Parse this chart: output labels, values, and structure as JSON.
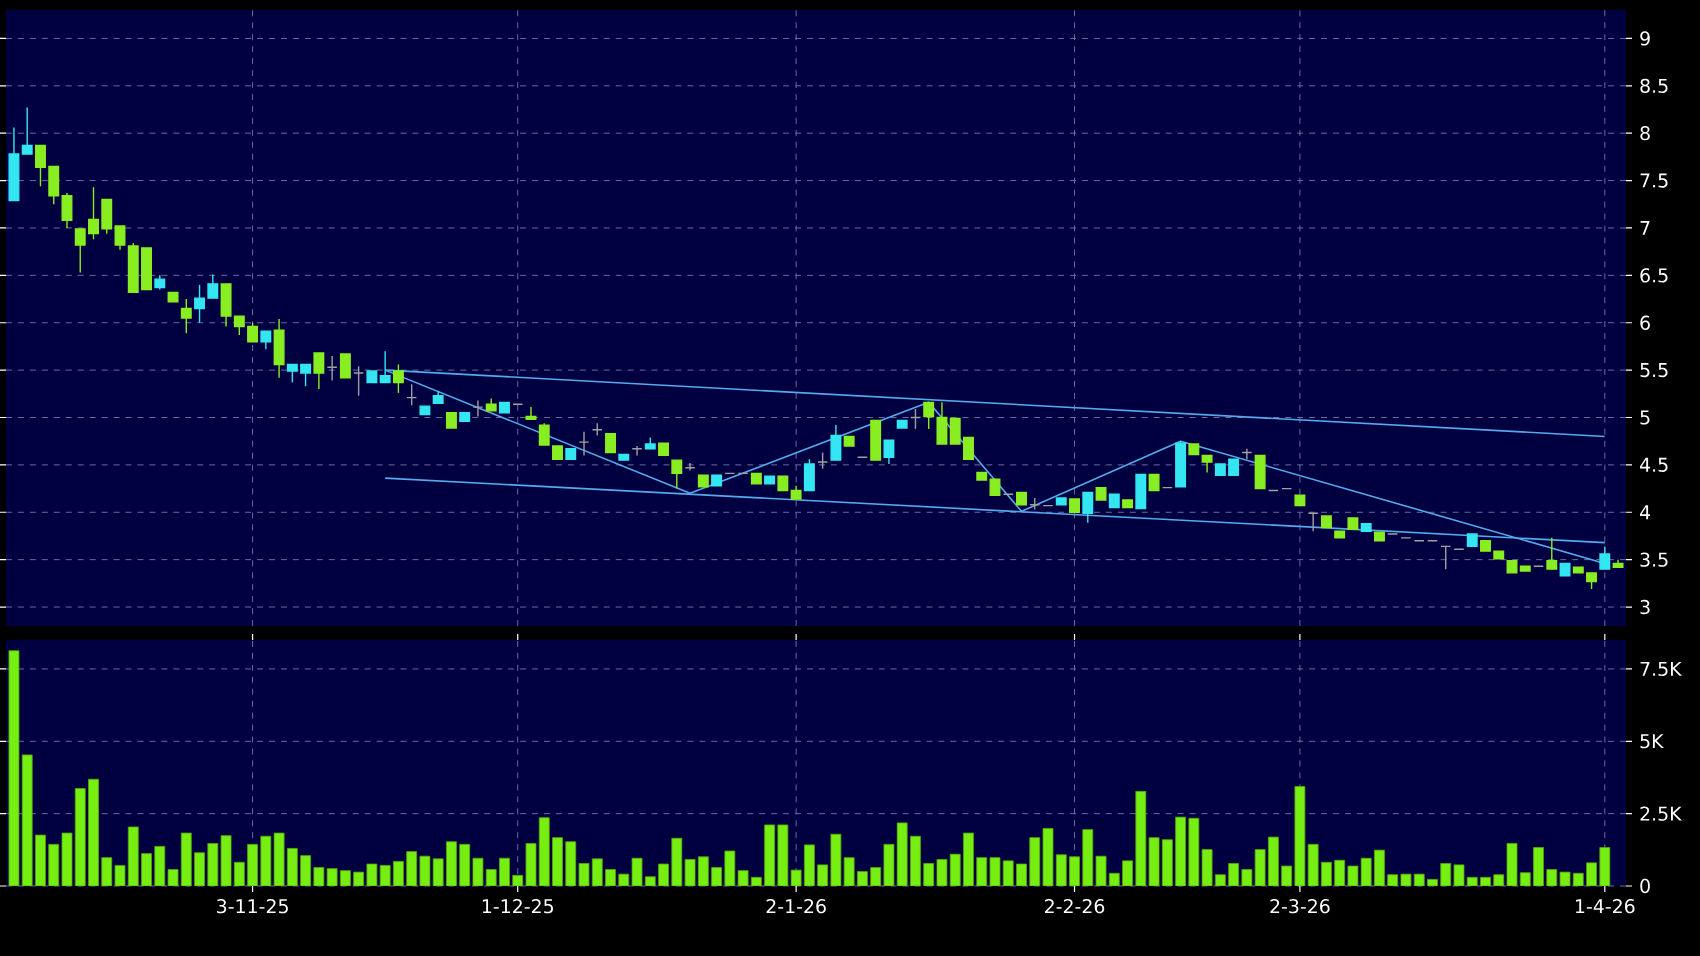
{
  "chart_data": [
    {
      "type": "candlestick",
      "categories": [
        null,
        null,
        null,
        null,
        null,
        null,
        null,
        null,
        null,
        null,
        null,
        null,
        null,
        null,
        null,
        null,
        null,
        null,
        null,
        null,
        null,
        null,
        null,
        null,
        null,
        null,
        null,
        null,
        null,
        null,
        null,
        null,
        null,
        null,
        null,
        null,
        null,
        null,
        null,
        null,
        null,
        null,
        null,
        null,
        null,
        null,
        null,
        null,
        null,
        null,
        null,
        null,
        null,
        null,
        null,
        null,
        null,
        null,
        null,
        null,
        null,
        null,
        null,
        null,
        null,
        null,
        null,
        null,
        null,
        null,
        null,
        null,
        null,
        null,
        null,
        null,
        null,
        null,
        null,
        null,
        null,
        null,
        null,
        null,
        null,
        null,
        null,
        null,
        null,
        null,
        null,
        null,
        null,
        null,
        null,
        null,
        null,
        null,
        null,
        null,
        null,
        null,
        null,
        null,
        null,
        null,
        null,
        null,
        null,
        null,
        null,
        null,
        null,
        null,
        null,
        null,
        null,
        null,
        null,
        null,
        null,
        null
      ],
      "ohlc": [
        [
          7.29,
          8.06,
          7.29,
          7.78
        ],
        [
          7.78,
          8.27,
          7.78,
          7.87
        ],
        [
          7.87,
          7.87,
          7.44,
          7.64
        ],
        [
          7.65,
          7.65,
          7.25,
          7.34
        ],
        [
          7.34,
          7.37,
          7.0,
          7.08
        ],
        [
          6.99,
          6.99,
          6.53,
          6.82
        ],
        [
          7.09,
          7.43,
          6.88,
          6.94
        ],
        [
          7.3,
          7.3,
          6.94,
          6.99
        ],
        [
          7.02,
          7.02,
          6.77,
          6.82
        ],
        [
          6.81,
          6.84,
          6.32,
          6.32
        ],
        [
          6.79,
          6.79,
          6.35,
          6.35
        ],
        [
          6.37,
          6.5,
          6.35,
          6.46
        ],
        [
          6.32,
          6.32,
          6.22,
          6.22
        ],
        [
          6.15,
          6.25,
          5.89,
          6.05
        ],
        [
          6.15,
          6.4,
          6.0,
          6.26
        ],
        [
          6.26,
          6.51,
          6.26,
          6.41
        ],
        [
          6.41,
          6.41,
          5.96,
          6.07
        ],
        [
          6.07,
          6.07,
          5.87,
          5.96
        ],
        [
          5.96,
          6.0,
          5.8,
          5.8
        ],
        [
          5.8,
          5.91,
          5.72,
          5.91
        ],
        [
          5.92,
          6.04,
          5.42,
          5.56
        ],
        [
          5.49,
          5.56,
          5.37,
          5.56
        ],
        [
          5.47,
          5.56,
          5.33,
          5.56
        ],
        [
          5.68,
          5.68,
          5.3,
          5.47
        ],
        [
          5.53,
          5.65,
          5.39,
          5.53
        ],
        [
          5.67,
          5.67,
          5.42,
          5.42
        ],
        [
          5.47,
          5.54,
          5.23,
          5.47
        ],
        [
          5.37,
          5.49,
          5.37,
          5.49
        ],
        [
          5.37,
          5.7,
          5.37,
          5.44
        ],
        [
          5.49,
          5.56,
          5.26,
          5.37
        ],
        [
          5.21,
          5.35,
          5.13,
          5.21
        ],
        [
          5.03,
          5.12,
          5.03,
          5.12
        ],
        [
          5.15,
          5.28,
          5.15,
          5.23
        ],
        [
          5.05,
          5.05,
          4.89,
          4.89
        ],
        [
          4.96,
          5.05,
          4.96,
          5.05
        ],
        [
          5.11,
          5.18,
          5.01,
          5.11
        ],
        [
          5.14,
          5.2,
          5.07,
          5.07
        ],
        [
          5.05,
          5.16,
          5.05,
          5.16
        ],
        [
          5.14,
          5.14,
          5.14,
          5.14
        ],
        [
          5.01,
          5.11,
          4.98,
          4.98
        ],
        [
          4.92,
          4.94,
          4.71,
          4.71
        ],
        [
          4.7,
          4.7,
          4.56,
          4.56
        ],
        [
          4.56,
          4.67,
          4.56,
          4.67
        ],
        [
          4.74,
          4.85,
          4.6,
          4.74
        ],
        [
          4.87,
          4.94,
          4.81,
          4.87
        ],
        [
          4.83,
          4.83,
          4.63,
          4.63
        ],
        [
          4.55,
          4.61,
          4.55,
          4.61
        ],
        [
          4.67,
          4.7,
          4.6,
          4.67
        ],
        [
          4.67,
          4.79,
          4.67,
          4.72
        ],
        [
          4.73,
          4.73,
          4.6,
          4.6
        ],
        [
          4.55,
          4.55,
          4.25,
          4.41
        ],
        [
          4.47,
          4.52,
          4.44,
          4.47
        ],
        [
          4.39,
          4.39,
          4.27,
          4.27
        ],
        [
          4.28,
          4.39,
          4.28,
          4.39
        ],
        [
          4.41,
          4.41,
          4.41,
          4.41
        ],
        [
          4.41,
          4.41,
          4.41,
          4.41
        ],
        [
          4.41,
          4.41,
          4.3,
          4.3
        ],
        [
          4.3,
          4.38,
          4.3,
          4.38
        ],
        [
          4.38,
          4.38,
          4.23,
          4.23
        ],
        [
          4.23,
          4.28,
          4.14,
          4.14
        ],
        [
          4.23,
          4.56,
          4.23,
          4.51
        ],
        [
          4.53,
          4.63,
          4.46,
          4.53
        ],
        [
          4.55,
          4.92,
          4.55,
          4.81
        ],
        [
          4.8,
          4.8,
          4.7,
          4.7
        ],
        [
          4.58,
          4.58,
          4.58,
          4.58
        ],
        [
          4.97,
          4.97,
          4.55,
          4.55
        ],
        [
          4.58,
          4.76,
          4.51,
          4.76
        ],
        [
          4.89,
          4.97,
          4.89,
          4.97
        ],
        [
          5.0,
          5.09,
          4.88,
          5.0
        ],
        [
          5.16,
          5.16,
          4.88,
          5.01
        ],
        [
          5.0,
          5.16,
          4.72,
          4.72
        ],
        [
          4.99,
          4.99,
          4.72,
          4.72
        ],
        [
          4.79,
          4.79,
          4.56,
          4.56
        ],
        [
          4.42,
          4.42,
          4.34,
          4.34
        ],
        [
          4.35,
          4.35,
          4.18,
          4.18
        ],
        [
          4.19,
          4.19,
          4.19,
          4.19
        ],
        [
          4.21,
          4.21,
          4.08,
          4.08
        ],
        [
          4.08,
          4.15,
          4.03,
          4.08
        ],
        [
          4.07,
          4.07,
          4.07,
          4.07
        ],
        [
          4.08,
          4.15,
          4.08,
          4.15
        ],
        [
          4.14,
          4.14,
          4.0,
          4.0
        ],
        [
          3.99,
          4.21,
          3.89,
          4.21
        ],
        [
          4.26,
          4.26,
          4.13,
          4.13
        ],
        [
          4.05,
          4.19,
          4.05,
          4.19
        ],
        [
          4.13,
          4.13,
          4.05,
          4.05
        ],
        [
          4.04,
          4.4,
          4.04,
          4.4
        ],
        [
          4.4,
          4.4,
          4.23,
          4.23
        ],
        [
          4.26,
          4.26,
          4.26,
          4.26
        ],
        [
          4.27,
          4.75,
          4.27,
          4.73
        ],
        [
          4.72,
          4.72,
          4.61,
          4.61
        ],
        [
          4.6,
          4.6,
          4.42,
          4.53
        ],
        [
          4.39,
          4.51,
          4.39,
          4.51
        ],
        [
          4.39,
          4.56,
          4.39,
          4.56
        ],
        [
          4.63,
          4.67,
          4.56,
          4.63
        ],
        [
          4.6,
          4.6,
          4.25,
          4.25
        ],
        [
          4.23,
          4.23,
          4.23,
          4.23
        ],
        [
          4.25,
          4.25,
          4.25,
          4.25
        ],
        [
          4.18,
          4.18,
          4.07,
          4.07
        ],
        [
          3.99,
          3.99,
          3.8,
          3.99
        ],
        [
          3.96,
          3.96,
          3.84,
          3.84
        ],
        [
          3.8,
          3.8,
          3.73,
          3.73
        ],
        [
          3.94,
          3.94,
          3.82,
          3.82
        ],
        [
          3.8,
          3.88,
          3.8,
          3.88
        ],
        [
          3.79,
          3.79,
          3.7,
          3.7
        ],
        [
          3.77,
          3.77,
          3.77,
          3.77
        ],
        [
          3.73,
          3.73,
          3.73,
          3.73
        ],
        [
          3.7,
          3.7,
          3.7,
          3.7
        ],
        [
          3.7,
          3.7,
          3.7,
          3.7
        ],
        [
          3.64,
          3.64,
          3.4,
          3.64
        ],
        [
          3.61,
          3.61,
          3.61,
          3.61
        ],
        [
          3.64,
          3.77,
          3.64,
          3.77
        ],
        [
          3.7,
          3.7,
          3.59,
          3.59
        ],
        [
          3.59,
          3.59,
          3.51,
          3.51
        ],
        [
          3.49,
          3.49,
          3.36,
          3.36
        ],
        [
          3.43,
          3.43,
          3.38,
          3.38
        ],
        [
          3.43,
          3.43,
          3.43,
          3.43
        ],
        [
          3.49,
          3.73,
          3.4,
          3.4
        ],
        [
          3.33,
          3.46,
          3.33,
          3.46
        ],
        [
          3.42,
          3.42,
          3.36,
          3.36
        ],
        [
          3.36,
          3.36,
          3.19,
          3.27
        ],
        [
          3.4,
          3.64,
          3.4,
          3.56
        ],
        [
          3.46,
          3.5,
          3.42,
          3.42
        ]
      ],
      "colors": [
        "#33e6f2",
        "#33e6f2",
        "#88ee22",
        "#88ee22",
        "#88ee22",
        "#88ee22",
        "#88ee22",
        "#88ee22",
        "#88ee22",
        "#88ee22",
        "#88ee22",
        "#33e6f2",
        "#88ee22",
        "#88ee22",
        "#33e6f2",
        "#33e6f2",
        "#88ee22",
        "#88ee22",
        "#88ee22",
        "#33e6f2",
        "#88ee22",
        "#33e6f2",
        "#33e6f2",
        "#88ee22",
        "#a0a0a0",
        "#88ee22",
        "#a0a0a0",
        "#33e6f2",
        "#33e6f2",
        "#88ee22",
        "#a0a0a0",
        "#33e6f2",
        "#33e6f2",
        "#88ee22",
        "#33e6f2",
        "#a0a0a0",
        "#88ee22",
        "#33e6f2",
        "#a0a0a0",
        "#88ee22",
        "#88ee22",
        "#88ee22",
        "#33e6f2",
        "#a0a0a0",
        "#a0a0a0",
        "#88ee22",
        "#33e6f2",
        "#a0a0a0",
        "#33e6f2",
        "#88ee22",
        "#88ee22",
        "#a0a0a0",
        "#88ee22",
        "#33e6f2",
        "#a0a0a0",
        "#a0a0a0",
        "#88ee22",
        "#33e6f2",
        "#88ee22",
        "#88ee22",
        "#33e6f2",
        "#a0a0a0",
        "#33e6f2",
        "#88ee22",
        "#a0a0a0",
        "#88ee22",
        "#33e6f2",
        "#33e6f2",
        "#a0a0a0",
        "#88ee22",
        "#88ee22",
        "#88ee22",
        "#88ee22",
        "#88ee22",
        "#88ee22",
        "#a0a0a0",
        "#88ee22",
        "#a0a0a0",
        "#a0a0a0",
        "#33e6f2",
        "#88ee22",
        "#33e6f2",
        "#88ee22",
        "#33e6f2",
        "#88ee22",
        "#33e6f2",
        "#88ee22",
        "#a0a0a0",
        "#33e6f2",
        "#88ee22",
        "#88ee22",
        "#33e6f2",
        "#33e6f2",
        "#a0a0a0",
        "#88ee22",
        "#a0a0a0",
        "#a0a0a0",
        "#88ee22",
        "#a0a0a0",
        "#88ee22",
        "#88ee22",
        "#88ee22",
        "#33e6f2",
        "#88ee22",
        "#a0a0a0",
        "#a0a0a0",
        "#a0a0a0",
        "#a0a0a0",
        "#a0a0a0",
        "#a0a0a0",
        "#33e6f2",
        "#88ee22",
        "#88ee22",
        "#88ee22",
        "#88ee22",
        "#a0a0a0",
        "#88ee22",
        "#33e6f2",
        "#88ee22",
        "#88ee22",
        "#33e6f2",
        "#88ee22"
      ],
      "series": [
        {
          "type": "line",
          "color": "#55aaee",
          "values": [
            null,
            null,
            null,
            null,
            null,
            null,
            null,
            null,
            null,
            null,
            null,
            null,
            null,
            null,
            null,
            null,
            null,
            null,
            null,
            null,
            null,
            null,
            null,
            null,
            null,
            null,
            null,
            null,
            5.5,
            null,
            null,
            null,
            null,
            null,
            null,
            null,
            null,
            null,
            null,
            null,
            null,
            null,
            null,
            null,
            null,
            null,
            null,
            null,
            null,
            null,
            null,
            null,
            null,
            null,
            null,
            null,
            null,
            null,
            null,
            null,
            null,
            null,
            null,
            null,
            null,
            null,
            null,
            null,
            null,
            null,
            null,
            null,
            null,
            null,
            null,
            null,
            null,
            null,
            null,
            null,
            null,
            null,
            null,
            null,
            null,
            null,
            null,
            null,
            null,
            null,
            null,
            null,
            null,
            null,
            null,
            null,
            null,
            null,
            null,
            null,
            null,
            null,
            null,
            null,
            null,
            null,
            null,
            null,
            null,
            null,
            null,
            null,
            null,
            null,
            null,
            null,
            null,
            null,
            null,
            null,
            4.8,
            null
          ]
        },
        {
          "type": "line",
          "color": "#55aaee",
          "values": [
            null,
            null,
            null,
            null,
            null,
            null,
            null,
            null,
            null,
            null,
            null,
            null,
            null,
            null,
            null,
            null,
            null,
            null,
            null,
            null,
            null,
            null,
            null,
            null,
            null,
            null,
            null,
            null,
            4.36,
            null,
            null,
            null,
            null,
            null,
            null,
            null,
            null,
            null,
            null,
            null,
            null,
            null,
            null,
            null,
            null,
            null,
            null,
            null,
            null,
            null,
            null,
            null,
            null,
            null,
            null,
            null,
            null,
            null,
            null,
            null,
            null,
            null,
            null,
            null,
            null,
            null,
            null,
            null,
            null,
            null,
            null,
            null,
            null,
            null,
            null,
            null,
            null,
            null,
            null,
            null,
            null,
            null,
            null,
            null,
            null,
            null,
            null,
            null,
            null,
            null,
            null,
            null,
            null,
            null,
            null,
            null,
            null,
            null,
            null,
            null,
            null,
            null,
            null,
            null,
            null,
            null,
            null,
            null,
            null,
            null,
            null,
            null,
            null,
            null,
            null,
            null,
            null,
            null,
            null,
            null,
            3.68,
            null
          ]
        },
        {
          "type": "line",
          "color": "#55aaee",
          "values": [
            null,
            null,
            null,
            null,
            null,
            null,
            null,
            null,
            null,
            null,
            null,
            null,
            null,
            null,
            null,
            null,
            null,
            null,
            null,
            null,
            null,
            null,
            null,
            null,
            null,
            null,
            null,
            null,
            5.5,
            null,
            null,
            null,
            null,
            null,
            null,
            null,
            null,
            null,
            null,
            null,
            null,
            null,
            null,
            null,
            null,
            null,
            null,
            null,
            null,
            null,
            null,
            4.2,
            null,
            null,
            null,
            null,
            null,
            null,
            null,
            null,
            null,
            null,
            null,
            null,
            null,
            null,
            null,
            null,
            null,
            5.16,
            null,
            null,
            null,
            null,
            null,
            null,
            4.01,
            null,
            null,
            null,
            null,
            null,
            null,
            null,
            null,
            null,
            null,
            null,
            4.75,
            null,
            null,
            null,
            null,
            null,
            null,
            null,
            null,
            null,
            null,
            null,
            null,
            null,
            null,
            null,
            null,
            null,
            null,
            null,
            null,
            null,
            null,
            null,
            null,
            null,
            null,
            null,
            null,
            null,
            null,
            null,
            3.46,
            null
          ]
        }
      ],
      "ylim": [
        2.8,
        9.3
      ],
      "yticks": [
        3,
        3.5,
        4,
        4.5,
        5,
        5.5,
        6,
        6.5,
        7,
        7.5,
        8,
        8.5,
        9
      ],
      "grid": true
    },
    {
      "type": "bar",
      "categories": [
        null,
        null,
        null,
        null,
        null,
        null,
        null,
        null,
        null,
        null,
        null,
        null,
        null,
        null,
        null,
        null,
        null,
        null,
        "3-11-25",
        null,
        null,
        null,
        null,
        null,
        null,
        null,
        null,
        null,
        null,
        null,
        null,
        null,
        null,
        null,
        null,
        null,
        null,
        null,
        "1-12-25",
        null,
        null,
        null,
        null,
        null,
        null,
        null,
        null,
        null,
        null,
        null,
        null,
        null,
        null,
        null,
        null,
        null,
        null,
        null,
        null,
        "2-1-26",
        null,
        null,
        null,
        null,
        null,
        null,
        null,
        null,
        null,
        null,
        null,
        null,
        null,
        null,
        null,
        null,
        null,
        null,
        null,
        null,
        "2-2-26",
        null,
        null,
        null,
        null,
        null,
        null,
        null,
        null,
        null,
        null,
        null,
        null,
        null,
        null,
        null,
        null,
        "2-3-26",
        null,
        null,
        null,
        null,
        null,
        null,
        null,
        null,
        null,
        null,
        null,
        null,
        null,
        null,
        null,
        null,
        null,
        null,
        null,
        null,
        null,
        null,
        "1-4-26",
        null
      ],
      "values": [
        8130,
        4530,
        1760,
        1440,
        1830,
        3370,
        3690,
        980,
        710,
        2040,
        1120,
        1370,
        570,
        1830,
        1150,
        1470,
        1740,
        820,
        1440,
        1720,
        1830,
        1300,
        1050,
        640,
        600,
        530,
        480,
        760,
        710,
        850,
        1190,
        1030,
        940,
        1530,
        1440,
        960,
        570,
        960,
        370,
        1470,
        2360,
        1670,
        1530,
        780,
        940,
        570,
        410,
        960,
        320,
        760,
        1650,
        920,
        1010,
        640,
        1210,
        530,
        300,
        2110,
        2110,
        550,
        1420,
        730,
        1790,
        980,
        500,
        640,
        1440,
        2180,
        1720,
        780,
        920,
        1100,
        1830,
        980,
        980,
        870,
        760,
        1670,
        1990,
        1080,
        1010,
        1950,
        1030,
        440,
        870,
        3270,
        1670,
        1600,
        2380,
        2340,
        1260,
        390,
        780,
        570,
        1260,
        1690,
        690,
        3440,
        1440,
        820,
        890,
        690,
        960,
        1240,
        390,
        410,
        410,
        230,
        780,
        730,
        300,
        300,
        390,
        1470,
        460,
        1330,
        570,
        480,
        440,
        800,
        1330,
        null
      ],
      "color": "#77ee11",
      "ylim": [
        0,
        8500
      ],
      "yticks": [
        0,
        {
          "value": 2500,
          "label": "2.5K"
        },
        {
          "value": 5000,
          "label": "5K"
        },
        {
          "value": 7500,
          "label": "7.5K"
        }
      ],
      "grid": true
    }
  ]
}
